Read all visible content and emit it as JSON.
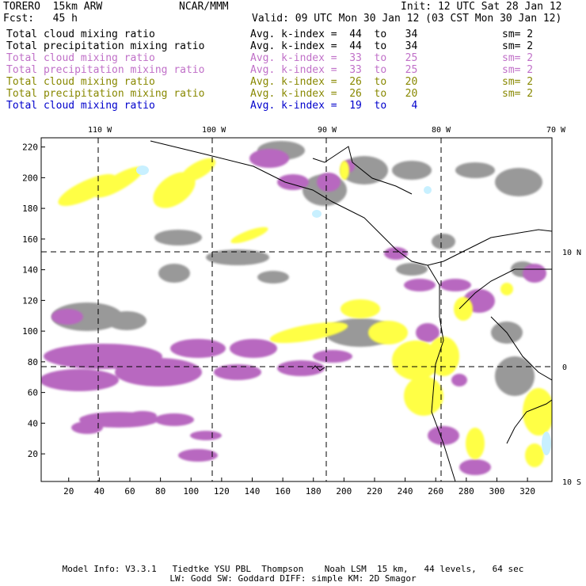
{
  "header": {
    "title_left": "TORERO  15km ARW",
    "title_center": "NCAR/MMM",
    "init": "Init: 12 UTC Sat 28 Jan 12",
    "fcst": "Fcst:   45 h",
    "valid": "Valid: 09 UTC Mon 30 Jan 12 (03 CST Mon 30 Jan 12)"
  },
  "legend": [
    {
      "field": "Total cloud mixing ratio",
      "kindex": "Avg. k-index =  44  to   34",
      "sm": "sm= 2",
      "color": "#000000"
    },
    {
      "field": "Total precipitation mixing ratio",
      "kindex": "Avg. k-index =  44  to   34",
      "sm": "sm= 2",
      "color": "#000000"
    },
    {
      "field": "Total cloud mixing ratio",
      "kindex": "Avg. k-index =  33  to   25",
      "sm": "sm= 2",
      "color": "#c070c8"
    },
    {
      "field": "Total precipitation mixing ratio",
      "kindex": "Avg. k-index =  33  to   25",
      "sm": "sm= 2",
      "color": "#c070c8"
    },
    {
      "field": "Total cloud mixing ratio",
      "kindex": "Avg. k-index =  26  to   20",
      "sm": "sm= 2",
      "color": "#888800"
    },
    {
      "field": "Total precipitation mixing ratio",
      "kindex": "Avg. k-index =  26  to   20",
      "sm": "sm= 2",
      "color": "#888800"
    },
    {
      "field": "Total cloud mixing ratio",
      "kindex": "Avg. k-index =  19  to    4",
      "sm": "",
      "color": "#0000cc"
    }
  ],
  "map": {
    "lon_labels": [
      "110 W",
      "100 W",
      "90 W",
      "80 W",
      "70 W"
    ],
    "lat_labels": [
      "10 N",
      "0",
      "10 S"
    ],
    "y_ticks": [
      "220",
      "200",
      "180",
      "160",
      "140",
      "120",
      "100",
      "80",
      "60",
      "40",
      "20"
    ],
    "x_ticks": [
      "20",
      "40",
      "60",
      "80",
      "100",
      "120",
      "140",
      "160",
      "180",
      "200",
      "220",
      "240",
      "260",
      "280",
      "300",
      "320"
    ],
    "colors": {
      "gray": "#999999",
      "purple": "#b868c0",
      "yellow": "#ffff44",
      "lightblue": "#c8f0ff"
    }
  },
  "footer": {
    "line1": "Model Info: V3.3.1   Tiedtke YSU PBL  Thompson    Noah LSM  15 km,   44 levels,   64 sec",
    "line2": "LW: Godd SW: Goddard DIFF: simple KM: 2D Smagor"
  }
}
